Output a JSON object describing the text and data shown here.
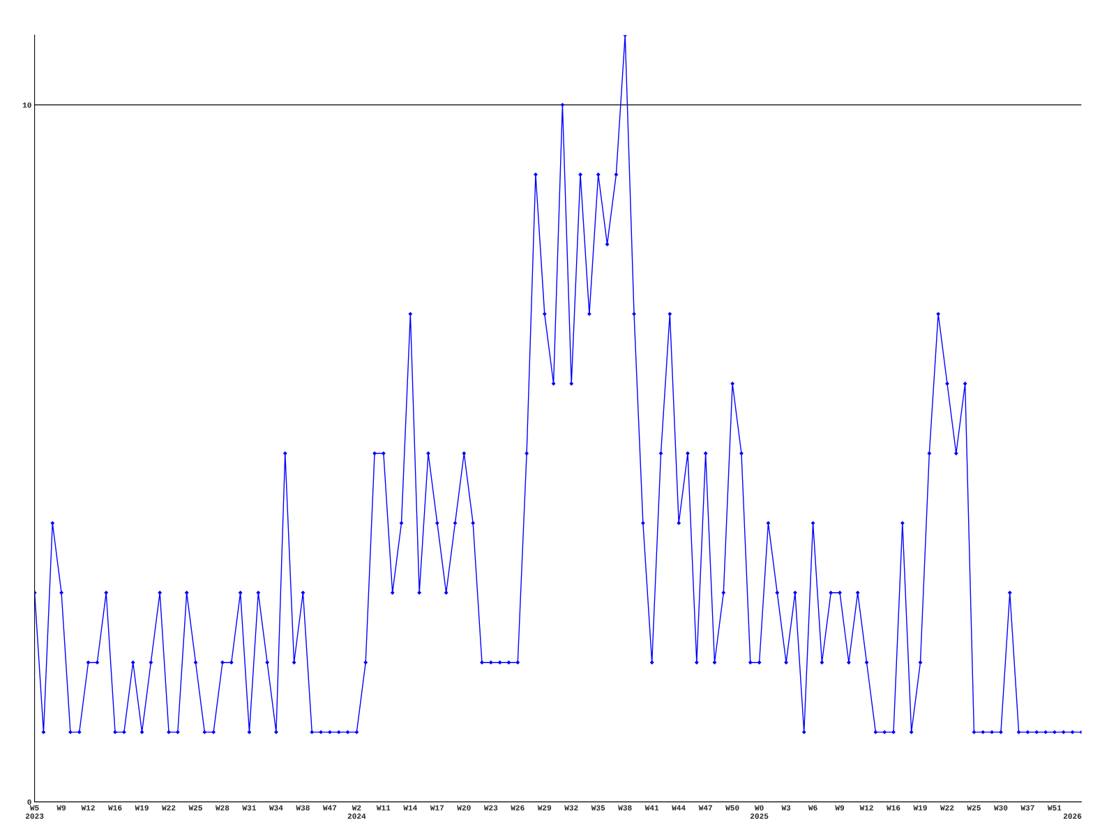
{
  "chart_data": {
    "type": "line",
    "categories": [
      "W5\n2023",
      null,
      null,
      "W9",
      null,
      null,
      "W12",
      null,
      null,
      "W16",
      null,
      null,
      "W19",
      null,
      null,
      "W22",
      null,
      null,
      "W25",
      null,
      null,
      "W28",
      null,
      null,
      "W31",
      null,
      null,
      "W34",
      null,
      null,
      "W38",
      null,
      null,
      "W47",
      null,
      null,
      "W2\n2024",
      null,
      null,
      "W11",
      null,
      null,
      "W14",
      null,
      null,
      "W17",
      null,
      null,
      "W20",
      null,
      null,
      "W23",
      null,
      null,
      "W26",
      null,
      null,
      "W29",
      null,
      null,
      "W32",
      null,
      null,
      "W35",
      null,
      null,
      "W38",
      null,
      null,
      "W41",
      null,
      null,
      "W44",
      null,
      null,
      "W47",
      null,
      null,
      "W50",
      null,
      null,
      "W0\n2025",
      null,
      null,
      "W3",
      null,
      null,
      "W6",
      null,
      null,
      "W9",
      null,
      null,
      "W12",
      null,
      null,
      "W16",
      null,
      null,
      "W19",
      null,
      null,
      "W22",
      null,
      null,
      "W25",
      null,
      null,
      "W30",
      null,
      null,
      "W37",
      null,
      null,
      "W51",
      null,
      "\n2026",
      null
    ],
    "series": [
      {
        "color": "#0000ff",
        "values": [
          3,
          1,
          4,
          3,
          1,
          1,
          2,
          2,
          3,
          1,
          1,
          2,
          1,
          2,
          3,
          1,
          1,
          3,
          2,
          1,
          1,
          2,
          2,
          3,
          1,
          3,
          2,
          1,
          5,
          2,
          3,
          1,
          1,
          1,
          1,
          1,
          1,
          2,
          5,
          5,
          3,
          4,
          7,
          3,
          5,
          4,
          3,
          4,
          5,
          4,
          2,
          2,
          2,
          2,
          2,
          5,
          9,
          7,
          6,
          10,
          6,
          9,
          7,
          9,
          8,
          9,
          11,
          7,
          4,
          2,
          5,
          7,
          4,
          5,
          2,
          5,
          2,
          3,
          6,
          5,
          2,
          2,
          4,
          3,
          2,
          3,
          1,
          4,
          2,
          3,
          3,
          2,
          3,
          2,
          1,
          1,
          1,
          4,
          1,
          2,
          5,
          7,
          6,
          5,
          6,
          1,
          1,
          1,
          1,
          3,
          1,
          1,
          1,
          1,
          1,
          1,
          1,
          1
        ]
      }
    ],
    "ylim": [
      0,
      11
    ],
    "yticks": [
      0,
      10
    ],
    "grid": "y",
    "marker": "diamond",
    "line_style": "solid"
  }
}
